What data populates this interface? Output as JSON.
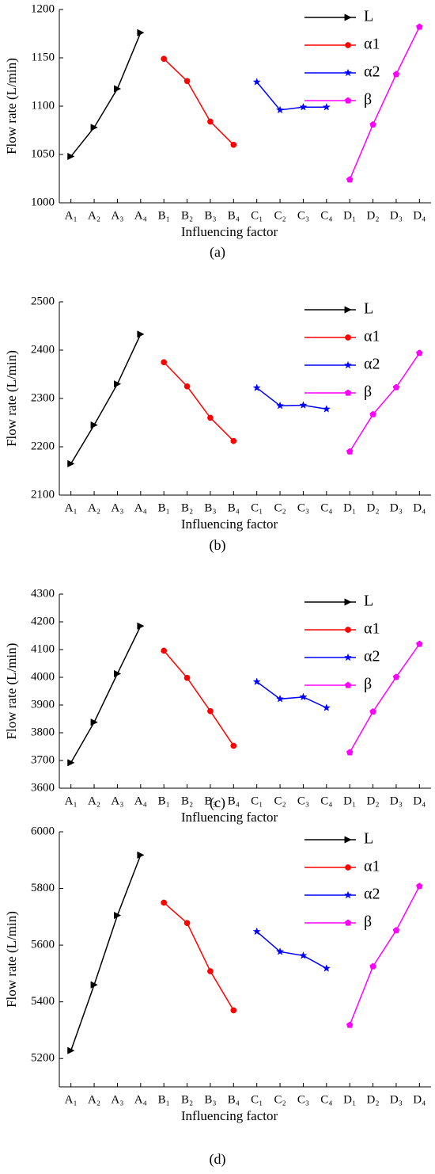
{
  "chart_data": [
    {
      "type": "line",
      "caption": "(a)",
      "x_label": "Influencing factor",
      "y_label": "Flow rate (L/min)",
      "categories": [
        "A₁",
        "A₂",
        "A₃",
        "A₄",
        "B₁",
        "B₂",
        "B₃",
        "B₄",
        "C₁",
        "C₂",
        "C₃",
        "C₄",
        "D₁",
        "D₂",
        "D₃",
        "D₄"
      ],
      "ylim": [
        1000,
        1200
      ],
      "yticks": [
        1000,
        1050,
        1100,
        1150,
        1200
      ],
      "grid": false,
      "series": [
        {
          "name": "L",
          "color": "#000000",
          "marker": "triangle-right",
          "values": [
            1048,
            1078,
            1118,
            1176,
            null,
            null,
            null,
            null,
            null,
            null,
            null,
            null,
            null,
            null,
            null,
            null
          ]
        },
        {
          "name": "α1",
          "color": "#ff0000",
          "marker": "circle",
          "values": [
            null,
            null,
            null,
            null,
            1149,
            1126,
            1084,
            1060,
            null,
            null,
            null,
            null,
            null,
            null,
            null,
            null
          ]
        },
        {
          "name": "α2",
          "color": "#0000ff",
          "marker": "star",
          "values": [
            null,
            null,
            null,
            null,
            null,
            null,
            null,
            null,
            1125,
            1096,
            1099,
            1099,
            null,
            null,
            null,
            null
          ]
        },
        {
          "name": "β",
          "color": "#ff00ff",
          "marker": "pentagon",
          "values": [
            null,
            null,
            null,
            null,
            null,
            null,
            null,
            null,
            null,
            null,
            null,
            null,
            1024,
            1081,
            1133,
            1182
          ]
        }
      ]
    },
    {
      "type": "line",
      "caption": "(b)",
      "x_label": "Influencing factor",
      "y_label": "Flow rate (L/min)",
      "categories": [
        "A₁",
        "A₂",
        "A₃",
        "A₄",
        "B₁",
        "B₂",
        "B₃",
        "B₄",
        "C₁",
        "C₂",
        "C₃",
        "C₄",
        "D₁",
        "D₂",
        "D₃",
        "D₄"
      ],
      "ylim": [
        2100,
        2500
      ],
      "yticks": [
        2100,
        2200,
        2300,
        2400,
        2500
      ],
      "grid": false,
      "series": [
        {
          "name": "L",
          "color": "#000000",
          "marker": "triangle-right",
          "values": [
            2165,
            2245,
            2330,
            2433,
            null,
            null,
            null,
            null,
            null,
            null,
            null,
            null,
            null,
            null,
            null,
            null
          ]
        },
        {
          "name": "α1",
          "color": "#ff0000",
          "marker": "circle",
          "values": [
            null,
            null,
            null,
            null,
            2375,
            2325,
            2260,
            2212,
            null,
            null,
            null,
            null,
            null,
            null,
            null,
            null
          ]
        },
        {
          "name": "α2",
          "color": "#0000ff",
          "marker": "star",
          "values": [
            null,
            null,
            null,
            null,
            null,
            null,
            null,
            null,
            2322,
            2285,
            2286,
            2278,
            null,
            null,
            null,
            null
          ]
        },
        {
          "name": "β",
          "color": "#ff00ff",
          "marker": "pentagon",
          "values": [
            null,
            null,
            null,
            null,
            null,
            null,
            null,
            null,
            null,
            null,
            null,
            null,
            2190,
            2267,
            2323,
            2394
          ]
        }
      ]
    },
    {
      "type": "line",
      "caption": "(c)",
      "x_label": "Influencing factor",
      "y_label": "Flow rate (L/min)",
      "categories": [
        "A₁",
        "A₂",
        "A₃",
        "A₄",
        "B₁",
        "B₂",
        "B₃",
        "B₄",
        "C₁",
        "C₂",
        "C₃",
        "C₄",
        "D₁",
        "D₂",
        "D₃",
        "D₄"
      ],
      "ylim": [
        3600,
        4300
      ],
      "yticks": [
        3600,
        3700,
        3800,
        3900,
        4000,
        4100,
        4200,
        4300
      ],
      "grid": false,
      "series": [
        {
          "name": "L",
          "color": "#000000",
          "marker": "triangle-right",
          "values": [
            3692,
            3838,
            4013,
            4185,
            null,
            null,
            null,
            null,
            null,
            null,
            null,
            null,
            null,
            null,
            null,
            null
          ]
        },
        {
          "name": "α1",
          "color": "#ff0000",
          "marker": "circle",
          "values": [
            null,
            null,
            null,
            null,
            4096,
            3998,
            3878,
            3753,
            null,
            null,
            null,
            null,
            null,
            null,
            null,
            null
          ]
        },
        {
          "name": "α2",
          "color": "#0000ff",
          "marker": "star",
          "values": [
            null,
            null,
            null,
            null,
            null,
            null,
            null,
            null,
            3984,
            3922,
            3929,
            3890,
            null,
            null,
            null,
            null
          ]
        },
        {
          "name": "β",
          "color": "#ff00ff",
          "marker": "pentagon",
          "values": [
            null,
            null,
            null,
            null,
            null,
            null,
            null,
            null,
            null,
            null,
            null,
            null,
            3729,
            3876,
            4001,
            4120
          ]
        }
      ]
    },
    {
      "type": "line",
      "caption": "(d)",
      "x_label": "Influencing factor",
      "y_label": "Flow rate (L/min)",
      "categories": [
        "A₁",
        "A₂",
        "A₃",
        "A₄",
        "B₁",
        "B₂",
        "B₃",
        "B₄",
        "C₁",
        "C₂",
        "C₃",
        "C₄",
        "D₁",
        "D₂",
        "D₃",
        "D₄"
      ],
      "ylim": [
        5100,
        6000
      ],
      "yticks": [
        5200,
        5400,
        5600,
        5800,
        6000
      ],
      "grid": false,
      "series": [
        {
          "name": "L",
          "color": "#000000",
          "marker": "triangle-right",
          "values": [
            5228,
            5460,
            5705,
            5918,
            null,
            null,
            null,
            null,
            null,
            null,
            null,
            null,
            null,
            null,
            null,
            null
          ]
        },
        {
          "name": "α1",
          "color": "#ff0000",
          "marker": "circle",
          "values": [
            null,
            null,
            null,
            null,
            5750,
            5678,
            5508,
            5370,
            null,
            null,
            null,
            null,
            null,
            null,
            null,
            null
          ]
        },
        {
          "name": "α2",
          "color": "#0000ff",
          "marker": "star",
          "values": [
            null,
            null,
            null,
            null,
            null,
            null,
            null,
            null,
            5648,
            5577,
            5563,
            5518,
            null,
            null,
            null,
            null
          ]
        },
        {
          "name": "β",
          "color": "#ff00ff",
          "marker": "pentagon",
          "values": [
            null,
            null,
            null,
            null,
            null,
            null,
            null,
            null,
            null,
            null,
            null,
            null,
            5318,
            5525,
            5652,
            5808
          ]
        }
      ]
    }
  ]
}
